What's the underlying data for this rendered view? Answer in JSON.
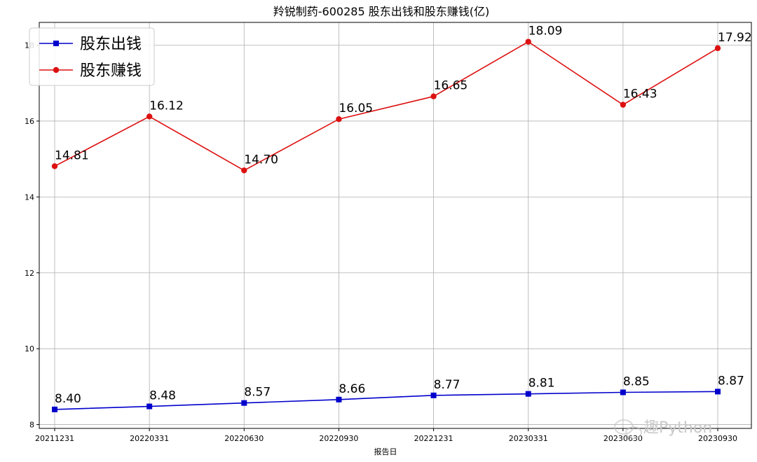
{
  "chart_data": {
    "type": "line",
    "title": "羚锐制药-600285 股东出钱和股东赚钱(亿)",
    "xlabel": "报告日",
    "ylabel": "",
    "categories": [
      "20211231",
      "20220331",
      "20220630",
      "20220930",
      "20221231",
      "20230331",
      "20230630",
      "20230930"
    ],
    "ylim": [
      7.9,
      18.6
    ],
    "yticks": [
      8,
      10,
      12,
      14,
      16,
      18
    ],
    "grid": true,
    "legend_position": "top-left",
    "series": [
      {
        "name": "股东出钱",
        "color": "#0000cc",
        "marker": "square",
        "values": [
          8.4,
          8.48,
          8.57,
          8.66,
          8.77,
          8.81,
          8.85,
          8.87
        ],
        "labels": [
          "8.40",
          "8.48",
          "8.57",
          "8.66",
          "8.77",
          "8.81",
          "8.85",
          "8.87"
        ]
      },
      {
        "name": "股东赚钱",
        "color": "#dd1111",
        "marker": "circle",
        "values": [
          14.81,
          16.12,
          14.7,
          16.05,
          16.65,
          18.09,
          16.43,
          17.92
        ],
        "labels": [
          "14.81",
          "16.12",
          "14.70",
          "16.05",
          "16.65",
          "18.09",
          "16.43",
          "17.92"
        ]
      }
    ]
  },
  "watermark": {
    "text": "趣Python",
    "icon": "wechat-icon"
  }
}
